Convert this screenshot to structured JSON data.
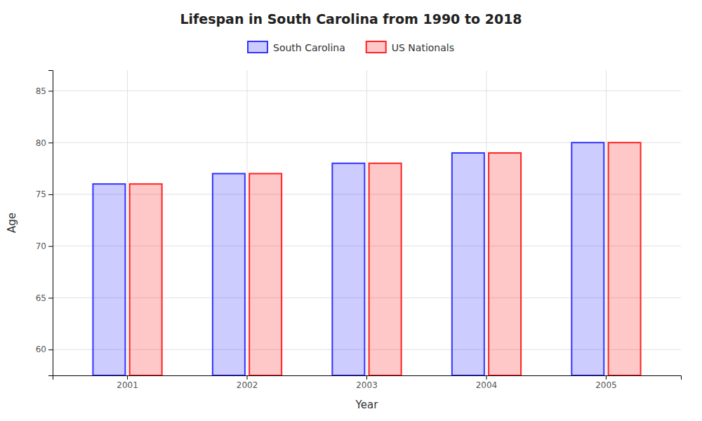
{
  "chart_data": {
    "type": "bar",
    "title": "Lifespan in South Carolina from 1990 to 2018",
    "x_label": "Year",
    "y_label": "Age",
    "categories": [
      "2001",
      "2002",
      "2003",
      "2004",
      "2005"
    ],
    "series": [
      {
        "name": "South Carolina",
        "color": "#3333ff",
        "values": [
          76,
          77,
          78,
          79,
          80
        ]
      },
      {
        "name": "US Nationals",
        "color": "#ff2222",
        "values": [
          76,
          77,
          78,
          79,
          80
        ]
      }
    ],
    "ylim": [
      57.5,
      87
    ],
    "yticks": [
      60,
      65,
      70,
      75,
      80,
      85
    ],
    "grid": true
  }
}
